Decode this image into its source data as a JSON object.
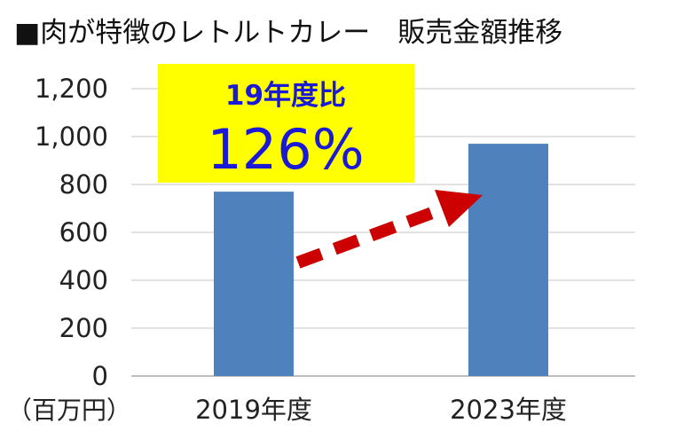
{
  "chart_data": {
    "type": "bar",
    "title": "■肉が特徴のレトルトカレー　販売金額推移",
    "unit_label": "（百万円）",
    "categories": [
      "2019年度",
      "2023年度"
    ],
    "values": [
      770,
      970
    ],
    "ylim": [
      0,
      1200
    ],
    "yticks": [
      "0",
      "200",
      "400",
      "600",
      "800",
      "1,000",
      "1,200"
    ],
    "ytick_values": [
      0,
      200,
      400,
      600,
      800,
      1000,
      1200
    ],
    "grid": true,
    "bar_color": "#4f81bd",
    "annotation": {
      "line1": "19年度比",
      "line2": "126%",
      "box_color": "#ffff00",
      "text_color": "#1a1ad6"
    },
    "arrow_color": "#cc0000"
  }
}
